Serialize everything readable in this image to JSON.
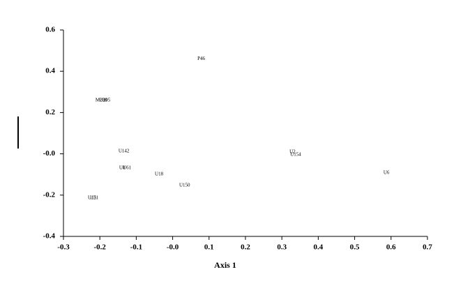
{
  "chart_data": {
    "type": "scatter",
    "x_label": "Axis 1",
    "points": [
      {
        "label": "P46",
        "x": 0.068,
        "y": 0.46
      },
      {
        "label": "M280",
        "x": -0.212,
        "y": 0.259
      },
      {
        "label": "U205",
        "x": -0.201,
        "y": 0.259
      },
      {
        "label": "U142",
        "x": -0.149,
        "y": 0.012
      },
      {
        "label": "U8",
        "x": -0.147,
        "y": -0.069
      },
      {
        "label": "U61",
        "x": -0.137,
        "y": -0.069
      },
      {
        "label": "U18",
        "x": -0.049,
        "y": -0.099
      },
      {
        "label": "U150",
        "x": 0.018,
        "y": -0.153
      },
      {
        "label": "U2",
        "x": 0.321,
        "y": 0.009
      },
      {
        "label": "U154",
        "x": 0.323,
        "y": -0.005
      },
      {
        "label": "U6",
        "x": 0.579,
        "y": -0.093
      },
      {
        "label": "U15",
        "x": -0.233,
        "y": -0.214
      },
      {
        "label": "U21",
        "x": -0.227,
        "y": -0.214
      }
    ],
    "xlim": [
      -0.3,
      0.7
    ],
    "xticks": [
      -0.3,
      -0.2,
      -0.1,
      {
        "value": 0,
        "label": "-0.0"
      },
      0.1,
      0.2,
      0.3,
      0.4,
      0.5,
      0.6,
      0.7
    ],
    "ylim": [
      -0.4,
      0.6
    ],
    "yticks": [
      {
        "value": -0.4,
        "label": "-0.4"
      },
      {
        "value": -0.2,
        "label": "-0.2"
      },
      {
        "value": 0,
        "label": "-0.0"
      },
      0.2,
      0.4,
      0.6
    ]
  }
}
